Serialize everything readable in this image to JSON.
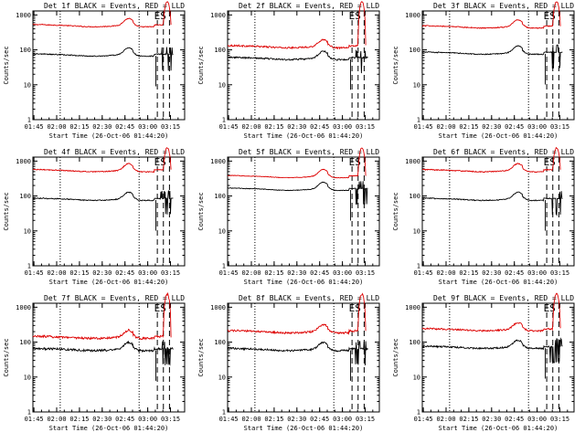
{
  "colors": {
    "events": "#000000",
    "lld": "#dd0000",
    "axis": "#000000"
  },
  "chart_data": [
    {
      "title": "Det 1f BLACK = Events, RED = LLD",
      "lld_base": 520,
      "ev_base": 75,
      "noise": 0.03,
      "events_label": "Events",
      "lld_label": "LLD"
    },
    {
      "title": "Det 2f BLACK = Events, RED = LLD",
      "lld_base": 130,
      "ev_base": 60,
      "noise": 0.05,
      "events_label": "Events",
      "lld_label": "LLD"
    },
    {
      "title": "Det 3f BLACK = Events, RED = LLD",
      "lld_base": 480,
      "ev_base": 85,
      "noise": 0.03,
      "events_label": "Events",
      "lld_label": "LLD"
    },
    {
      "title": "Det 4f BLACK = Events, RED = LLD",
      "lld_base": 560,
      "ev_base": 85,
      "noise": 0.03,
      "events_label": "Events",
      "lld_label": "LLD"
    },
    {
      "title": "Det 5f BLACK = Events, RED = LLD",
      "lld_base": 380,
      "ev_base": 165,
      "noise": 0.02,
      "events_label": "Events",
      "lld_label": "LLD"
    },
    {
      "title": "Det 6f BLACK = Events, RED = LLD",
      "lld_base": 560,
      "ev_base": 85,
      "noise": 0.03,
      "events_label": "Events",
      "lld_label": "LLD"
    },
    {
      "title": "Det 7f BLACK = Events, RED = LLD",
      "lld_base": 145,
      "ev_base": 65,
      "noise": 0.07,
      "events_label": "Events",
      "lld_label": "LLD"
    },
    {
      "title": "Det 8f BLACK = Events, RED = LLD",
      "lld_base": 210,
      "ev_base": 65,
      "noise": 0.06,
      "events_label": "Events",
      "lld_label": "LLD"
    },
    {
      "title": "Det 9f BLACK = Events, RED = LLD",
      "lld_base": 240,
      "ev_base": 75,
      "noise": 0.05,
      "events_label": "Events",
      "lld_label": "LLD"
    }
  ],
  "common": {
    "type": "line",
    "xlabel": "Start Time (26-Oct-06 01:44:20)",
    "ylabel": "Counts/sec",
    "x_tick_labels": [
      "01:45",
      "02:00",
      "02:15",
      "02:30",
      "02:45",
      "03:00",
      "03:15"
    ],
    "x_tick_minutes": [
      0.67,
      15.67,
      30.67,
      45.67,
      60.67,
      75.67,
      90.67
    ],
    "x_range_minutes": [
      0,
      100
    ],
    "y_tick_labels": [
      "1",
      "10",
      "100",
      "1000"
    ],
    "y_tick_values": [
      1,
      10,
      100,
      1000
    ],
    "ylim": [
      1,
      1300
    ],
    "yscale": "log",
    "dotted_lines_minutes": [
      18,
      70
    ],
    "dashed_lines_minutes": [
      82,
      86,
      90
    ],
    "markers": [
      {
        "label": "E",
        "minute": 82
      },
      {
        "label": "S",
        "minute": 86
      }
    ]
  }
}
